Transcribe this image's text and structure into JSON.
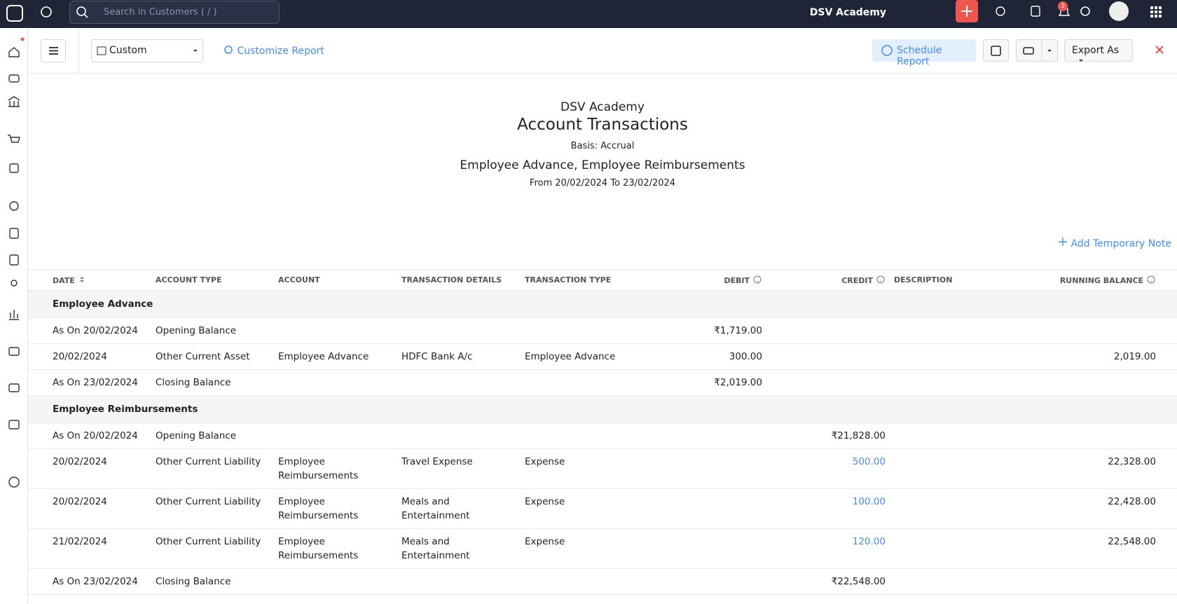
{
  "topbar": {
    "search_placeholder": "Search in Customers ( / )",
    "organization": "DSV Academy",
    "notification_count": "3"
  },
  "toolbar": {
    "period": "Custom",
    "customize": "Customize Report",
    "schedule": "Schedule Report",
    "export": "Export As"
  },
  "report": {
    "organization": "DSV Academy",
    "title": "Account Transactions",
    "basis": "Basis: Accrual",
    "accounts": "Employee Advance, Employee Reimbursements",
    "range": "From 20/02/2024 To 23/02/2024",
    "add_note": "Add Temporary Note"
  },
  "table": {
    "columns": [
      "DATE",
      "ACCOUNT TYPE",
      "ACCOUNT",
      "TRANSACTION DETAILS",
      "TRANSACTION TYPE",
      "DEBIT",
      "CREDIT",
      "DESCRIPTION",
      "RUNNING BALANCE"
    ],
    "groups": [
      {
        "name": "Employee Advance",
        "rows": [
          [
            "As On 20/02/2024",
            "Opening Balance",
            null,
            null,
            null,
            "₹1,719.00",
            null,
            null,
            null
          ],
          [
            "20/02/2024",
            "Other Current Asset",
            "Employee Advance",
            "HDFC Bank A/c",
            "Employee Advance",
            "300.00",
            null,
            null,
            "2,019.00"
          ],
          [
            "As On 23/02/2024",
            "Closing Balance",
            null,
            null,
            null,
            "₹2,019.00",
            null,
            null,
            null
          ]
        ]
      },
      {
        "name": "Employee Reimbursements",
        "rows": [
          [
            "As On 20/02/2024",
            "Opening Balance",
            null,
            null,
            null,
            null,
            "₹21,828.00",
            null,
            null
          ],
          [
            "20/02/2024",
            "Other Current Liability",
            "Employee Reimbursements",
            "Travel Expense",
            "Expense",
            null,
            "500.00",
            null,
            "22,328.00"
          ],
          [
            "20/02/2024",
            "Other Current Liability",
            "Employee Reimbursements",
            "Meals and Entertainment",
            "Expense",
            null,
            "100.00",
            null,
            "22,428.00"
          ],
          [
            "21/02/2024",
            "Other Current Liability",
            "Employee Reimbursements",
            "Meals and Entertainment",
            "Expense",
            null,
            "120.00",
            null,
            "22,548.00"
          ],
          [
            "As On 23/02/2024",
            "Closing Balance",
            null,
            null,
            null,
            null,
            "₹22,548.00",
            null,
            null
          ]
        ]
      }
    ]
  }
}
